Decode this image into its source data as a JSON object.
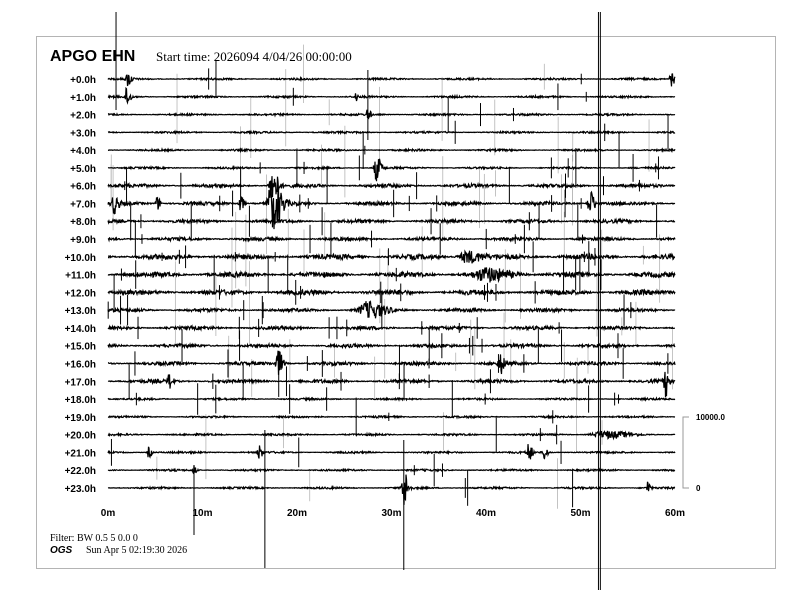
{
  "chart_data": {
    "type": "line",
    "title": "APGO EHN",
    "subtitle": "Start time: 2026094  4/04/26 00:00:00",
    "row_labels": [
      "+0.0h",
      "+1.0h",
      "+2.0h",
      "+3.0h",
      "+4.0h",
      "+5.0h",
      "+6.0h",
      "+7.0h",
      "+8.0h",
      "+9.0h",
      "+10.0h",
      "+11.0h",
      "+12.0h",
      "+13.0h",
      "+14.0h",
      "+15.0h",
      "+16.0h",
      "+17.0h",
      "+18.0h",
      "+19.0h",
      "+20.0h",
      "+21.0h",
      "+22.0h",
      "+23.0h"
    ],
    "x_ticks": [
      "0m",
      "10m",
      "20m",
      "30m",
      "40m",
      "50m",
      "60m"
    ],
    "x_tick_values": [
      0,
      10,
      20,
      30,
      40,
      50,
      60
    ],
    "xlim": [
      0,
      60
    ],
    "scale_bar": {
      "top_label": "10000.0",
      "bottom_label": "0",
      "top_value": 10000,
      "bottom_value": 0
    },
    "trace_color": "#000000",
    "events": [
      {
        "row": 0,
        "minute": 2.1,
        "amplitude": 1100,
        "duration": 0.6
      },
      {
        "row": 0,
        "minute": 59.6,
        "amplitude": 1100,
        "duration": 0.6
      },
      {
        "row": 1,
        "minute": 2.0,
        "amplitude": 1500,
        "duration": 0.6
      },
      {
        "row": 1,
        "minute": 26.2,
        "amplitude": 800,
        "duration": 0.3
      },
      {
        "row": 2,
        "minute": 27.5,
        "amplitude": 1400,
        "duration": 0.4
      },
      {
        "row": 5,
        "minute": 28.4,
        "amplitude": 1900,
        "duration": 0.8
      },
      {
        "row": 6,
        "minute": 17.4,
        "amplitude": 2500,
        "duration": 1.0
      },
      {
        "row": 7,
        "minute": 17.4,
        "amplitude": 3600,
        "duration": 1.6
      },
      {
        "row": 7,
        "minute": 0.6,
        "amplitude": 1300,
        "duration": 0.8
      },
      {
        "row": 7,
        "minute": 5.2,
        "amplitude": 1000,
        "duration": 0.6
      },
      {
        "row": 7,
        "minute": 14.0,
        "amplitude": 1300,
        "duration": 0.6
      },
      {
        "row": 7,
        "minute": 51.0,
        "amplitude": 2000,
        "duration": 0.8
      },
      {
        "row": 10,
        "minute": 38.0,
        "amplitude": 900,
        "duration": 2.5
      },
      {
        "row": 11,
        "minute": 40.0,
        "amplitude": 800,
        "duration": 4.0
      },
      {
        "row": 13,
        "minute": 27.5,
        "amplitude": 1100,
        "duration": 3.0
      },
      {
        "row": 16,
        "minute": 18.0,
        "amplitude": 1900,
        "duration": 0.8
      },
      {
        "row": 16,
        "minute": 41.5,
        "amplitude": 1400,
        "duration": 0.7
      },
      {
        "row": 17,
        "minute": 6.5,
        "amplitude": 1100,
        "duration": 0.6
      },
      {
        "row": 17,
        "minute": 59.0,
        "amplitude": 2000,
        "duration": 0.6
      },
      {
        "row": 20,
        "minute": 52.5,
        "amplitude": 500,
        "duration": 4.0
      },
      {
        "row": 21,
        "minute": 4.3,
        "amplitude": 800,
        "duration": 0.5
      },
      {
        "row": 21,
        "minute": 16.0,
        "amplitude": 1100,
        "duration": 0.5
      },
      {
        "row": 21,
        "minute": 44.5,
        "amplitude": 1400,
        "duration": 0.6
      },
      {
        "row": 21,
        "minute": 46.2,
        "amplitude": 1100,
        "duration": 0.5
      },
      {
        "row": 22,
        "minute": 9.1,
        "amplitude": 800,
        "duration": 0.4
      },
      {
        "row": 23,
        "minute": 31.3,
        "amplitude": 2800,
        "duration": 0.7
      },
      {
        "row": 23,
        "minute": 57.1,
        "amplitude": 1100,
        "duration": 0.4
      }
    ]
  },
  "footer": {
    "filter": "Filter: BW 0.5 5 0.0 0",
    "org": "OGS",
    "generated": "Sun Apr  5 02:19:30 2026"
  }
}
